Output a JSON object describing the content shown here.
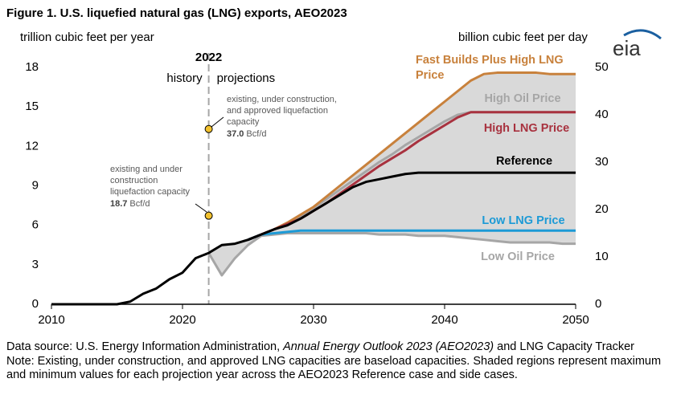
{
  "title": "Figure 1. U.S. liquefied natural gas (LNG) exports, AEO2023",
  "logo": "eia",
  "chart_data": {
    "type": "line",
    "y_label": "trillion cubic feet per year",
    "y2_label": "billion cubic feet per day",
    "x": [
      2010,
      2011,
      2012,
      2013,
      2014,
      2015,
      2016,
      2017,
      2018,
      2019,
      2020,
      2021,
      2022,
      2023,
      2024,
      2025,
      2026,
      2027,
      2028,
      2029,
      2030,
      2031,
      2032,
      2033,
      2034,
      2035,
      2036,
      2037,
      2038,
      2039,
      2040,
      2041,
      2042,
      2043,
      2044,
      2045,
      2046,
      2047,
      2048,
      2049,
      2050
    ],
    "xlim": [
      2010,
      2050
    ],
    "xticks": [
      2010,
      2020,
      2030,
      2040,
      2050
    ],
    "ylim": [
      0,
      18
    ],
    "yticks": [
      0,
      3,
      6,
      9,
      12,
      15,
      18
    ],
    "y2lim": [
      0,
      50
    ],
    "y2ticks": [
      0,
      10,
      20,
      30,
      40,
      50
    ],
    "shade_range": true,
    "divider": {
      "x": 2022,
      "label": "2022",
      "left": "history",
      "right": "projections"
    },
    "annotations": [
      {
        "lines": [
          "existing, under construction,",
          "and approved liquefaction",
          "capacity"
        ],
        "value": {
          "value": 37.0,
          "label": "37.0"
        },
        "unit": "Bcf/d",
        "x": 2022,
        "axis": "y2"
      },
      {
        "lines": [
          "existing and under",
          "construction",
          "liquefaction capacity"
        ],
        "value": {
          "value": 18.7,
          "label": "18.7"
        },
        "unit": "Bcf/d",
        "x": 2022,
        "axis": "y2"
      }
    ],
    "series": [
      {
        "name": "High Oil Price",
        "color": "#a6a6a6",
        "label_color": "#a6a6a6",
        "values": [
          null,
          null,
          null,
          null,
          null,
          null,
          null,
          null,
          null,
          null,
          null,
          null,
          null,
          null,
          null,
          4.9,
          5.3,
          5.7,
          6.1,
          6.6,
          7.3,
          8.0,
          8.7,
          9.4,
          10.1,
          10.8,
          11.4,
          12.1,
          12.7,
          13.3,
          13.9,
          14.4,
          14.6,
          14.6,
          14.6,
          14.6,
          14.6,
          14.6,
          14.6,
          14.6,
          14.6
        ]
      },
      {
        "name": "Low Oil Price",
        "color": "#a6a6a6",
        "label_color": "#a6a6a6",
        "values": [
          null,
          null,
          null,
          null,
          null,
          null,
          null,
          null,
          null,
          null,
          null,
          null,
          3.9,
          2.2,
          3.5,
          4.5,
          5.2,
          5.3,
          5.4,
          5.4,
          5.4,
          5.4,
          5.4,
          5.4,
          5.4,
          5.3,
          5.3,
          5.3,
          5.2,
          5.2,
          5.2,
          5.1,
          5.0,
          4.9,
          4.8,
          4.7,
          4.7,
          4.7,
          4.7,
          4.6,
          4.6
        ]
      },
      {
        "name": "Fast Builds Plus High LNG Price",
        "color": "#c8813c",
        "label_color": "#c8813c",
        "values": [
          null,
          null,
          null,
          null,
          null,
          null,
          null,
          null,
          null,
          null,
          null,
          null,
          null,
          null,
          null,
          4.9,
          5.3,
          5.7,
          6.2,
          6.8,
          7.4,
          8.2,
          9.0,
          9.8,
          10.6,
          11.4,
          12.2,
          13.0,
          13.8,
          14.6,
          15.4,
          16.2,
          17.0,
          17.5,
          17.6,
          17.6,
          17.6,
          17.6,
          17.5,
          17.5,
          17.5
        ]
      },
      {
        "name": "High LNG Price",
        "color": "#a8323f",
        "label_color": "#a8323f",
        "values": [
          null,
          null,
          null,
          null,
          null,
          null,
          null,
          null,
          null,
          null,
          null,
          null,
          null,
          null,
          null,
          4.9,
          5.3,
          5.7,
          6.1,
          6.5,
          7.1,
          7.7,
          8.4,
          9.1,
          9.8,
          10.5,
          11.1,
          11.7,
          12.4,
          13.0,
          13.6,
          14.2,
          14.6,
          14.6,
          14.6,
          14.6,
          14.6,
          14.6,
          14.6,
          14.6,
          14.6
        ]
      },
      {
        "name": "Low LNG Price",
        "color": "#1c9ad6",
        "label_color": "#1c9ad6",
        "values": [
          null,
          null,
          null,
          null,
          null,
          null,
          null,
          null,
          null,
          null,
          null,
          null,
          null,
          null,
          null,
          4.9,
          5.3,
          5.4,
          5.5,
          5.6,
          5.6,
          5.6,
          5.6,
          5.6,
          5.6,
          5.6,
          5.6,
          5.6,
          5.6,
          5.6,
          5.6,
          5.6,
          5.6,
          5.6,
          5.6,
          5.6,
          5.6,
          5.6,
          5.6,
          5.6,
          5.6
        ]
      },
      {
        "name": "Reference",
        "color": "#000000",
        "label_color": "#000000",
        "values": [
          0,
          0,
          0,
          0,
          0,
          0,
          0.2,
          0.8,
          1.2,
          1.9,
          2.4,
          3.5,
          3.9,
          4.5,
          4.6,
          4.9,
          5.3,
          5.7,
          6.0,
          6.5,
          7.1,
          7.7,
          8.3,
          8.9,
          9.3,
          9.5,
          9.7,
          9.9,
          10.0,
          10.0,
          10.0,
          10.0,
          10.0,
          10.0,
          10.0,
          10.0,
          10.0,
          10.0,
          10.0,
          10.0,
          10.0
        ]
      }
    ]
  },
  "footer": {
    "source": [
      "Data source: U.S. Energy Information Administration, ",
      "Annual Energy Outlook 2023 (AEO2023)",
      " and LNG Capacity Tracker"
    ],
    "note": "Note: Existing, under construction, and approved LNG capacities are baseload capacities. Shaded regions represent maximum and minimum values for each projection year across the AEO2023 Reference case and side cases."
  }
}
